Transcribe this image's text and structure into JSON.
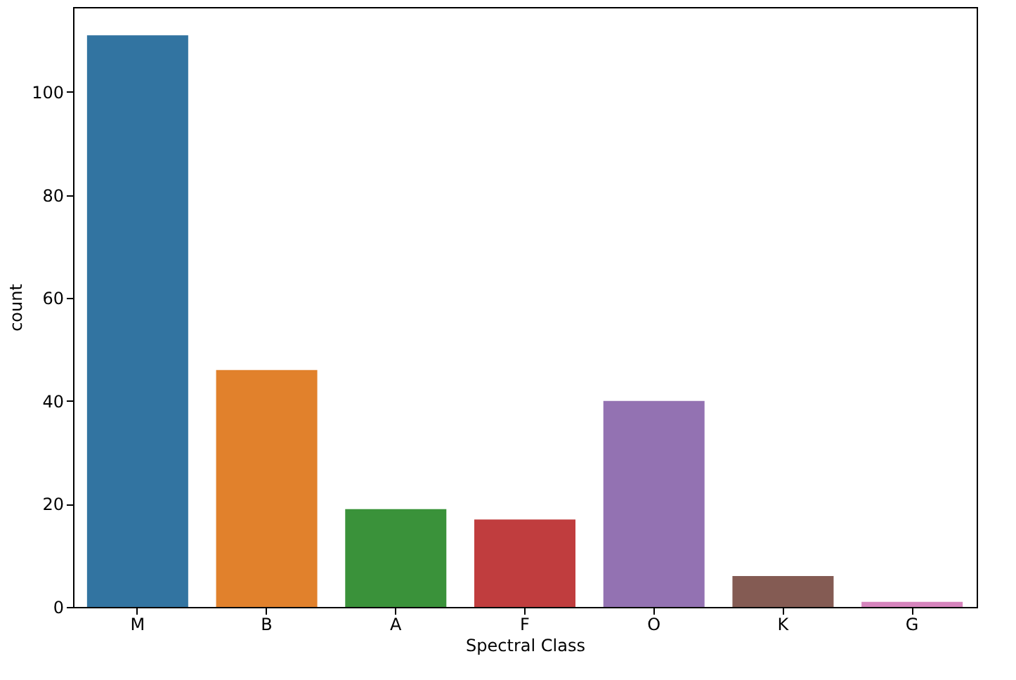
{
  "chart_data": {
    "type": "bar",
    "xlabel": "Spectral Class",
    "ylabel": "count",
    "categories": [
      "M",
      "B",
      "A",
      "F",
      "O",
      "K",
      "G"
    ],
    "values": [
      111,
      46,
      19,
      17,
      40,
      6,
      1
    ],
    "colors": [
      "#3274a1",
      "#e1812c",
      "#3a923a",
      "#c03d3e",
      "#9372b2",
      "#845b53",
      "#d684bd"
    ],
    "ylim": [
      0,
      116.5
    ],
    "yticks": [
      0,
      20,
      40,
      60,
      80,
      100
    ],
    "grid": false
  }
}
